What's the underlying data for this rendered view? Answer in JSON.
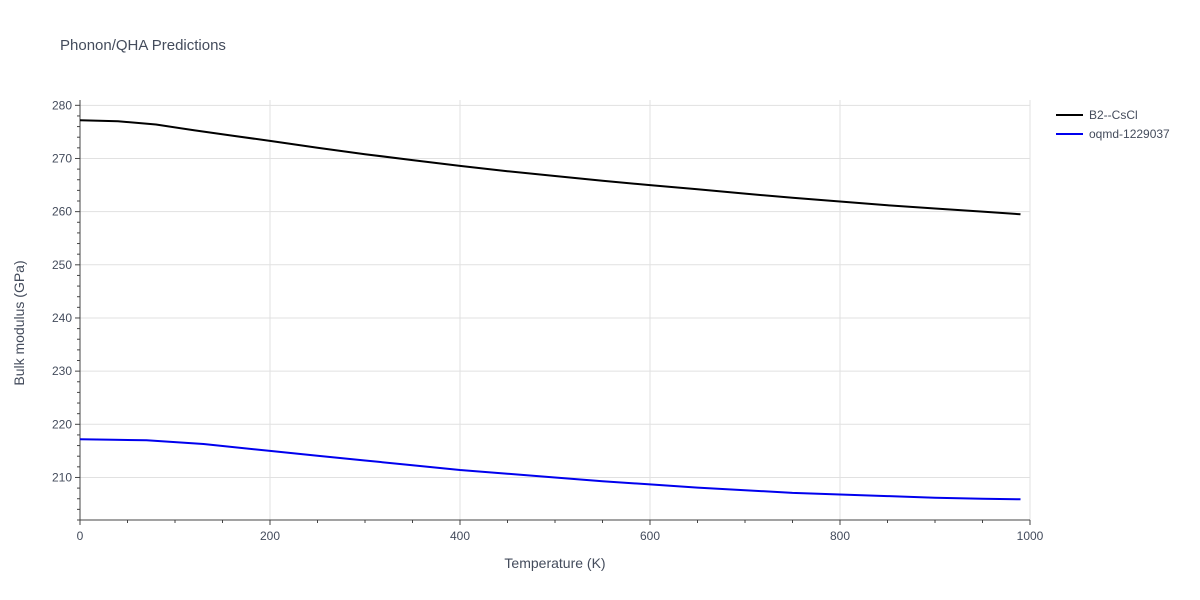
{
  "chart_data": {
    "type": "line",
    "title": "Phonon/QHA Predictions",
    "xlabel": "Temperature (K)",
    "ylabel": "Bulk modulus (GPa)",
    "xlim": [
      0,
      1000
    ],
    "ylim": [
      202,
      281
    ],
    "x_ticks": [
      0,
      200,
      400,
      600,
      800,
      1000
    ],
    "y_ticks": [
      210,
      220,
      230,
      240,
      250,
      260,
      270,
      280
    ],
    "grid": true,
    "legend_position": "top-right",
    "series": [
      {
        "name": "B2--CsCl",
        "color": "#000000",
        "x": [
          0,
          40,
          80,
          120,
          160,
          200,
          250,
          300,
          350,
          400,
          450,
          500,
          550,
          600,
          650,
          700,
          750,
          800,
          850,
          900,
          950,
          990
        ],
        "y": [
          277.2,
          277.0,
          276.4,
          275.3,
          274.3,
          273.3,
          272.0,
          270.8,
          269.7,
          268.6,
          267.6,
          266.7,
          265.8,
          265.0,
          264.2,
          263.4,
          262.6,
          261.9,
          261.2,
          260.6,
          260.0,
          259.5
        ]
      },
      {
        "name": "oqmd-1229037",
        "color": "#0000ee",
        "x": [
          0,
          35,
          70,
          130,
          200,
          250,
          300,
          350,
          400,
          450,
          500,
          550,
          600,
          650,
          700,
          750,
          800,
          850,
          900,
          950,
          990
        ],
        "y": [
          217.2,
          217.1,
          217.0,
          216.3,
          215.0,
          214.1,
          213.2,
          212.3,
          211.4,
          210.7,
          210.0,
          209.3,
          208.7,
          208.1,
          207.6,
          207.1,
          206.8,
          206.5,
          206.2,
          206.0,
          205.9
        ]
      }
    ]
  }
}
